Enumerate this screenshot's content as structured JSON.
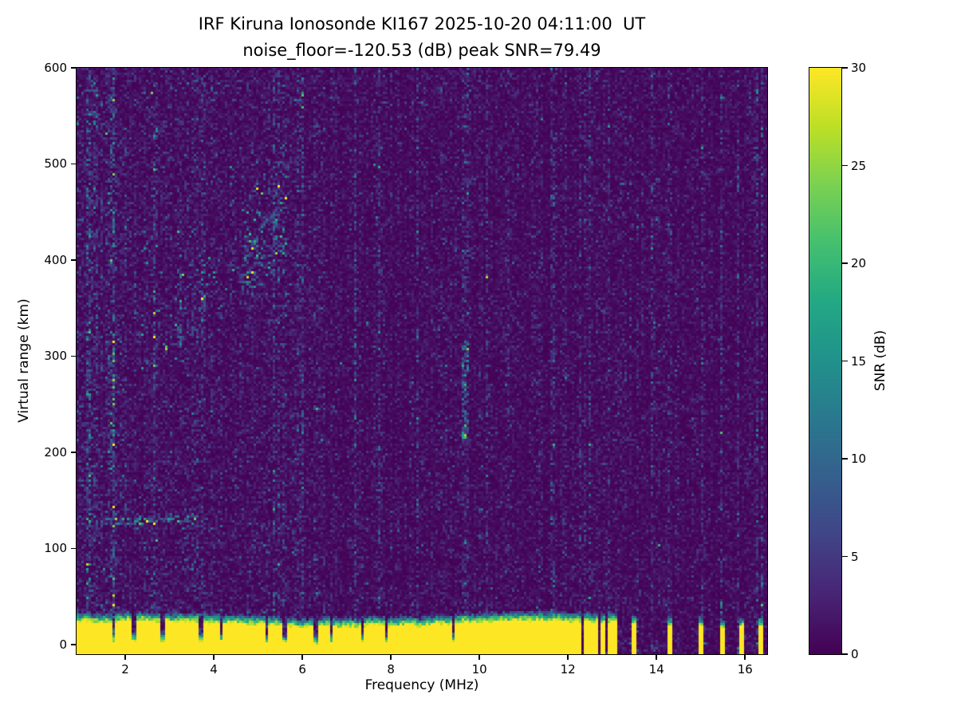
{
  "figure": {
    "title": "IRF Kiruna Ionosonde KI167 2025-10-20 04:11:00  UT",
    "subtitle": "noise_floor=-120.53 (dB) peak SNR=79.49"
  },
  "chart_data": {
    "type": "heatmap",
    "title": "IRF Kiruna Ionosonde KI167 2025-10-20 04:11:00  UT",
    "subtitle": "noise_floor=-120.53 (dB) peak SNR=79.49",
    "station": "KI167",
    "timestamp_ut": "2025-10-20 04:11:00",
    "noise_floor_db": -120.53,
    "peak_snr_db": 79.49,
    "xlabel": "Frequency (MHz)",
    "ylabel": "Virtual range (km)",
    "colorbar_label": "SNR (dB)",
    "xlim": [
      0.9,
      16.5
    ],
    "ylim": [
      -10,
      600
    ],
    "clim": [
      0,
      30
    ],
    "xticks": [
      2,
      4,
      6,
      8,
      10,
      12,
      14,
      16
    ],
    "yticks": [
      0,
      100,
      200,
      300,
      400,
      500,
      600
    ],
    "colorbar_ticks": [
      0,
      5,
      10,
      15,
      20,
      25,
      30
    ],
    "colormap": "viridis",
    "colormap_stops": [
      [
        0.0,
        "#440154"
      ],
      [
        0.1,
        "#482475"
      ],
      [
        0.2,
        "#414487"
      ],
      [
        0.3,
        "#355f8d"
      ],
      [
        0.4,
        "#2a788e"
      ],
      [
        0.5,
        "#21918c"
      ],
      [
        0.6,
        "#22a884"
      ],
      [
        0.7,
        "#44bf70"
      ],
      [
        0.8,
        "#7ad151"
      ],
      [
        0.9,
        "#bddf26"
      ],
      [
        1.0,
        "#fde725"
      ]
    ],
    "render": {
      "seed": 42,
      "cell": 3,
      "ground_band": {
        "top_km_base": 30,
        "top_km_variation": 8,
        "fringe_km": 10,
        "cutoff_mhz": 11.65,
        "notches_mhz": [
          1.75,
          2.2,
          2.85,
          3.7,
          4.15,
          5.2,
          5.6,
          6.3,
          6.65,
          7.35,
          7.9,
          9.4
        ],
        "sparse_columns_mhz": [
          11.72,
          11.83,
          11.95,
          12.1,
          12.22,
          12.38,
          12.5,
          12.62,
          12.78,
          12.92,
          13.05,
          13.5,
          14.28,
          14.97,
          15.5,
          15.93,
          16.35
        ],
        "sparse_width_mhz": 0.055
      },
      "e_layer": {
        "f_start_mhz": 1.45,
        "f_end_mhz": 3.65,
        "range_km": 127,
        "slope_km_per_mhz": 2.5
      },
      "f_layer": {
        "f_start_mhz": 2.35,
        "f_end_mhz": 5.65,
        "range_start_km": 278,
        "slope_km_per_mhz": 38,
        "thickness_km": 45
      },
      "interference_streak": {
        "f_mhz": 9.67,
        "range_min_km": 210,
        "range_max_km": 310
      }
    }
  }
}
